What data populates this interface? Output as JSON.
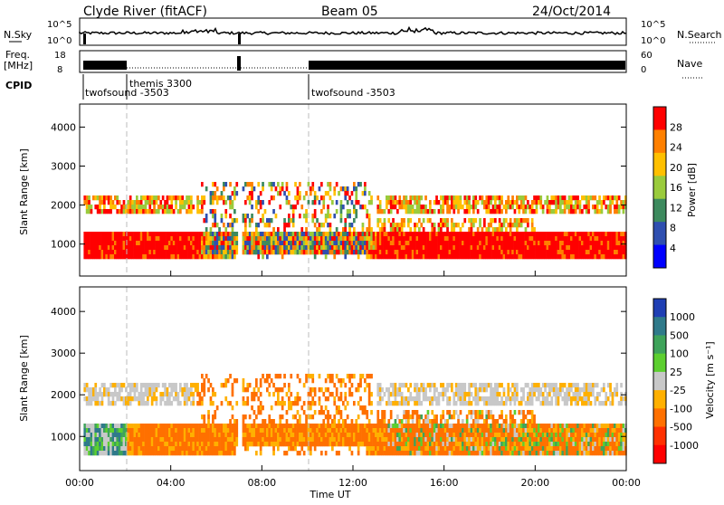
{
  "header": {
    "station": "Clyde River (fitACF)",
    "beam": "Beam 05",
    "date": "24/Oct/2014"
  },
  "strip_labels": {
    "nsky": "N.Sky",
    "nsky_ticks": [
      "10^5",
      "10^0"
    ],
    "nsearch": "N.Search",
    "nsearch_ticks": [
      "10^5",
      "10^0"
    ],
    "freq": "Freq.",
    "freq_unit": "[MHz]",
    "freq_ticks": [
      "18",
      "8"
    ],
    "nave": "Nave",
    "nave_ticks": [
      "60",
      "0"
    ],
    "cpid": "CPID"
  },
  "cpid_segments": [
    {
      "name": "twofsound -3503",
      "start": 0.0
    },
    {
      "name": "themis 3300",
      "start": 2.0
    },
    {
      "name": "twofsound -3503",
      "start": 10.0
    }
  ],
  "chart_data": [
    {
      "type": "heatmap",
      "title": "Power",
      "ylabel": "Slant Range [km]",
      "yticks": [
        "1000",
        "2000",
        "3000",
        "4000"
      ],
      "ylim": [
        180,
        4590
      ],
      "colorbar_label": "Power [dB]",
      "colorbar_ticks": [
        "4",
        "8",
        "12",
        "16",
        "20",
        "24",
        "28"
      ],
      "colors": [
        "#0000ff",
        "#2f4fb0",
        "#3d8a5e",
        "#9acb3c",
        "#ffc000",
        "#ff8000",
        "#ff0000"
      ]
    },
    {
      "type": "heatmap",
      "title": "Velocity",
      "ylabel": "Slant Range [km]",
      "yticks": [
        "1000",
        "2000",
        "3000",
        "4000"
      ],
      "ylim": [
        180,
        4590
      ],
      "xlabel": "Time UT",
      "xticks": [
        "00:00",
        "04:00",
        "08:00",
        "12:00",
        "16:00",
        "20:00",
        "00:00"
      ],
      "xlim": [
        0,
        24
      ],
      "colorbar_label": "Velocity [m s⁻¹]",
      "colorbar_ticks": [
        "1000",
        "500",
        "100",
        "25",
        "-25",
        "-100",
        "-500",
        "-1000"
      ],
      "colors": [
        "#1f3fb4",
        "#2f7a8a",
        "#3ea35a",
        "#5ccf2f",
        "#c8c8c8",
        "#ffb000",
        "#ff7000",
        "#ff3000",
        "#ff0000"
      ]
    }
  ]
}
